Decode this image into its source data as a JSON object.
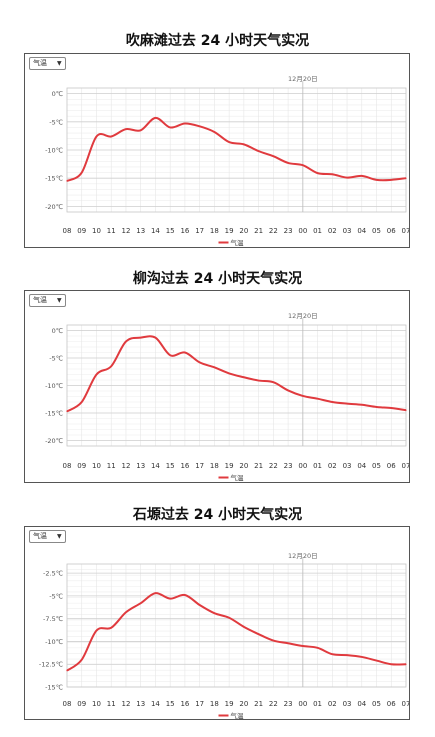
{
  "chart_data": [
    {
      "type": "line",
      "title": "吹麻滩过去 24 小时天气实况",
      "selector": "气温",
      "date_label": "12月20日",
      "categories": [
        "08",
        "09",
        "10",
        "11",
        "12",
        "13",
        "14",
        "15",
        "16",
        "17",
        "18",
        "19",
        "20",
        "21",
        "22",
        "23",
        "00",
        "01",
        "02",
        "03",
        "04",
        "05",
        "06",
        "07"
      ],
      "y_ticks": [
        0,
        -5,
        -10,
        -15,
        -20
      ],
      "y_tick_labels": [
        "0℃",
        "-5℃",
        "-10℃",
        "-15℃",
        "-20℃"
      ],
      "ylim": [
        -21,
        1
      ],
      "series": [
        {
          "name": "气温",
          "values": [
            -15.5,
            -14.0,
            -7.6,
            -7.6,
            -6.3,
            -6.5,
            -4.3,
            -6.0,
            -5.3,
            -5.8,
            -6.8,
            -8.6,
            -9.0,
            -10.2,
            -11.1,
            -12.3,
            -12.7,
            -14.1,
            -14.3,
            -14.9,
            -14.6,
            -15.3,
            -15.3,
            -15.0
          ],
          "color": "#e03a3e"
        }
      ],
      "legend": "bottom"
    },
    {
      "type": "line",
      "title": "柳沟过去 24 小时天气实况",
      "selector": "气温",
      "date_label": "12月20日",
      "categories": [
        "08",
        "09",
        "10",
        "11",
        "12",
        "13",
        "14",
        "15",
        "16",
        "17",
        "18",
        "19",
        "20",
        "21",
        "22",
        "23",
        "00",
        "01",
        "02",
        "03",
        "04",
        "05",
        "06",
        "07"
      ],
      "y_ticks": [
        0,
        -5,
        -10,
        -15,
        -20
      ],
      "y_tick_labels": [
        "0℃",
        "-5℃",
        "-10℃",
        "-15℃",
        "-20℃"
      ],
      "ylim": [
        -21,
        1
      ],
      "series": [
        {
          "name": "气温",
          "values": [
            -14.7,
            -13.0,
            -8.0,
            -6.5,
            -2.0,
            -1.3,
            -1.3,
            -4.5,
            -4.0,
            -5.8,
            -6.7,
            -7.8,
            -8.5,
            -9.1,
            -9.4,
            -10.9,
            -11.9,
            -12.4,
            -13.0,
            -13.3,
            -13.5,
            -13.9,
            -14.1,
            -14.5
          ],
          "color": "#e03a3e"
        }
      ],
      "legend": "bottom"
    },
    {
      "type": "line",
      "title": "石塬过去 24 小时天气实况",
      "selector": "气温",
      "date_label": "12月20日",
      "categories": [
        "08",
        "09",
        "10",
        "11",
        "12",
        "13",
        "14",
        "15",
        "16",
        "17",
        "18",
        "19",
        "20",
        "21",
        "22",
        "23",
        "00",
        "01",
        "02",
        "03",
        "04",
        "05",
        "06",
        "07"
      ],
      "y_ticks": [
        -2.5,
        -5,
        -7.5,
        -10,
        -12.5,
        -15
      ],
      "y_tick_labels": [
        "-2.5℃",
        "-5℃",
        "-7.5℃",
        "-10℃",
        "-12.5℃",
        "-15℃"
      ],
      "ylim": [
        -15,
        -1.5
      ],
      "series": [
        {
          "name": "气温",
          "values": [
            -13.2,
            -12.0,
            -8.8,
            -8.5,
            -6.8,
            -5.8,
            -4.7,
            -5.3,
            -4.9,
            -6.0,
            -6.9,
            -7.4,
            -8.4,
            -9.2,
            -9.9,
            -10.2,
            -10.5,
            -10.7,
            -11.4,
            -11.5,
            -11.7,
            -12.1,
            -12.5,
            -12.5
          ],
          "color": "#e03a3e"
        }
      ],
      "legend": "bottom"
    }
  ]
}
